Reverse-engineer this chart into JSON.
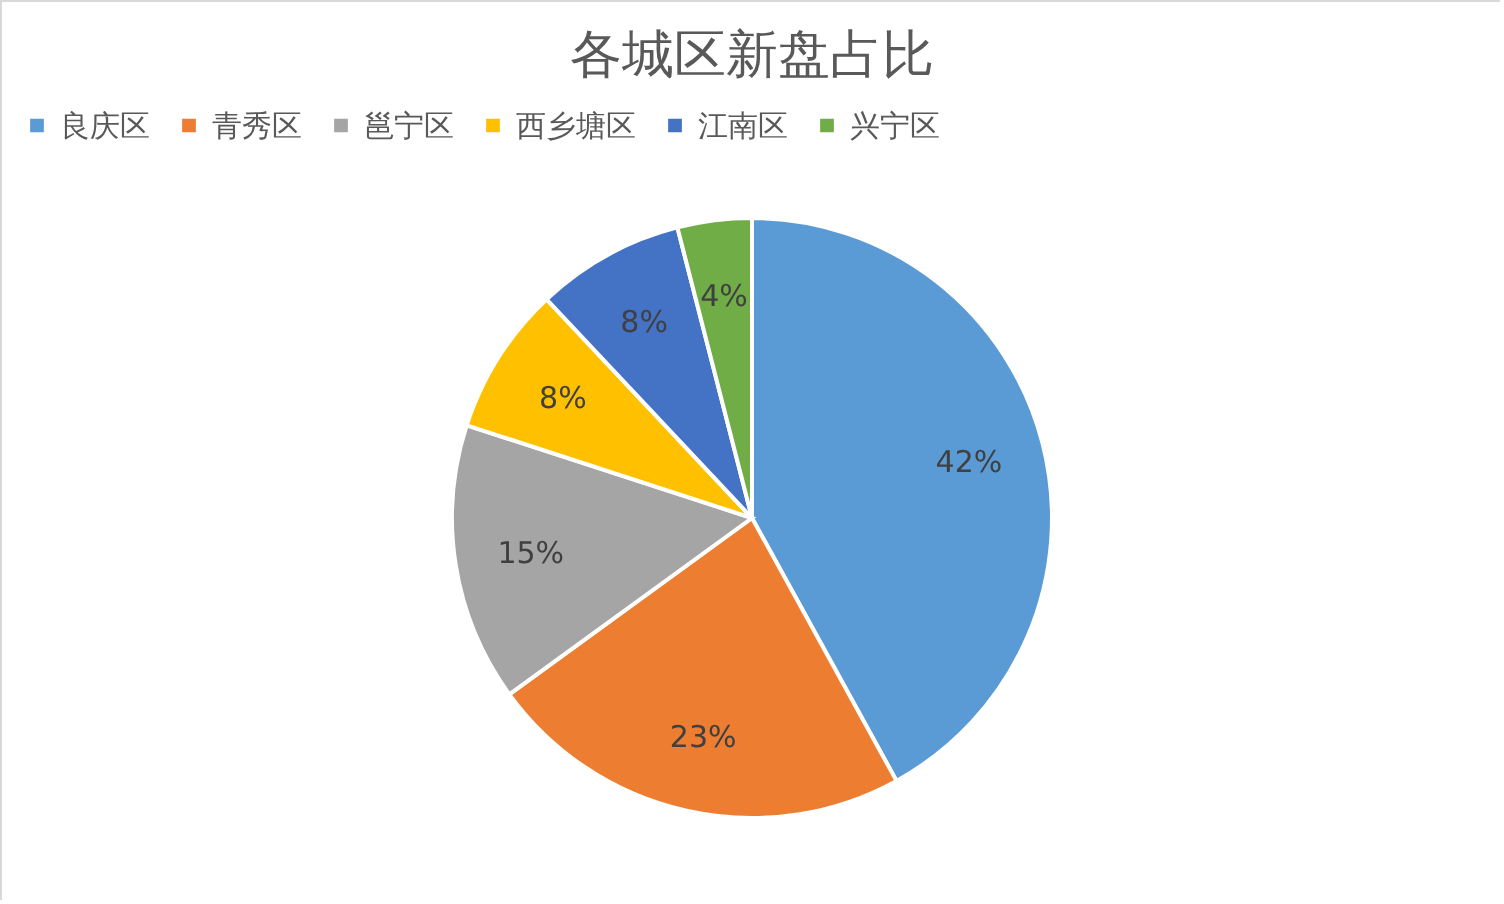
{
  "chart_data": {
    "type": "pie",
    "title": "各城区新盘占比",
    "categories": [
      "良庆区",
      "青秀区",
      "邕宁区",
      "西乡塘区",
      "江南区",
      "兴宁区"
    ],
    "values": [
      42,
      23,
      15,
      8,
      8,
      4
    ],
    "value_labels": [
      "42%",
      "23%",
      "15%",
      "8%",
      "8%",
      "4%"
    ],
    "colors": [
      "#5b9bd5",
      "#ed7d31",
      "#a5a5a5",
      "#ffc000",
      "#4472c4",
      "#70ad47"
    ],
    "legend": "top"
  }
}
